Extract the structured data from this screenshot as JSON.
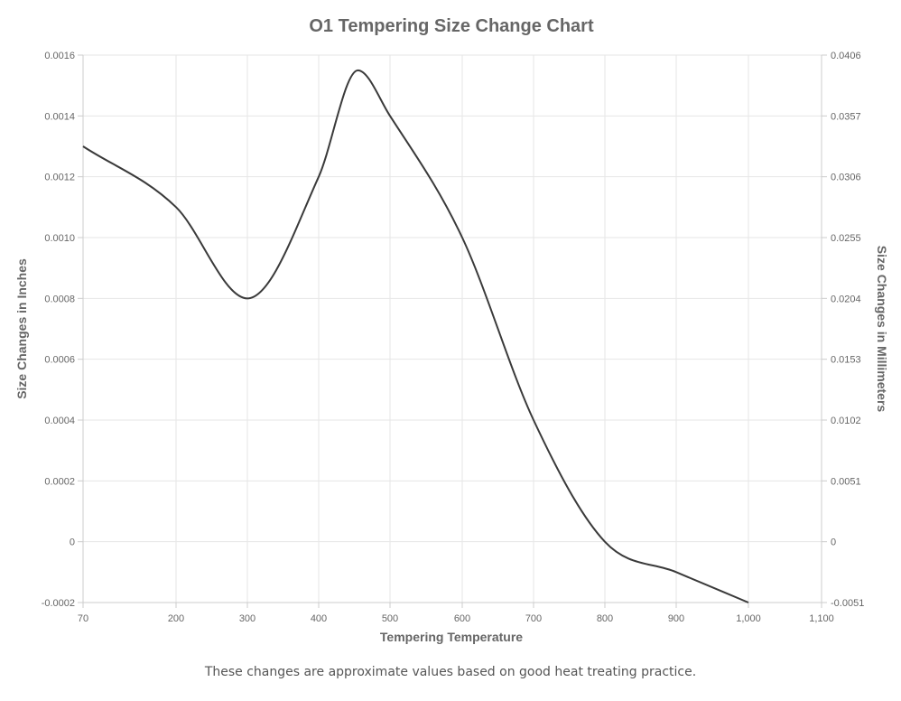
{
  "chart_data": {
    "type": "line",
    "title": "O1 Tempering Size Change Chart",
    "xlabel": "Tempering Temperature",
    "ylabel": "Size Changes in Inches",
    "y2label": "Size Changes in Millimeters",
    "x_ticks": [
      "70",
      "200",
      "300",
      "400",
      "500",
      "600",
      "700",
      "800",
      "900",
      "1,000",
      "1,100"
    ],
    "x_tick_values": [
      70,
      200,
      300,
      400,
      500,
      600,
      700,
      800,
      900,
      1000,
      1100
    ],
    "y_ticks": [
      "-0.0002",
      "0",
      "0.0002",
      "0.0004",
      "0.0006",
      "0.0008",
      "0.0010",
      "0.0012",
      "0.0014",
      "0.0016"
    ],
    "y_tick_values": [
      -0.0002,
      0,
      0.0002,
      0.0004,
      0.0006,
      0.0008,
      0.001,
      0.0012,
      0.0014,
      0.0016
    ],
    "y2_ticks": [
      "-0.0051",
      "0",
      "0.0051",
      "0.0102",
      "0.0153",
      "0.0204",
      "0.0255",
      "0.0306",
      "0.0357",
      "0.0406"
    ],
    "xlim": [
      70,
      1100
    ],
    "ylim": [
      -0.0002,
      0.0016
    ],
    "grid": true,
    "series_color": "#3a3a3a",
    "x": [
      70,
      200,
      300,
      400,
      455,
      500,
      600,
      700,
      800,
      900,
      1000
    ],
    "y": [
      0.0013,
      0.0011,
      0.0008,
      0.0012,
      0.00155,
      0.0014,
      0.001,
      0.0004,
      0.0,
      -0.0001,
      -0.0002
    ]
  },
  "footnote": "These changes are approximate values based on good heat treating practice."
}
